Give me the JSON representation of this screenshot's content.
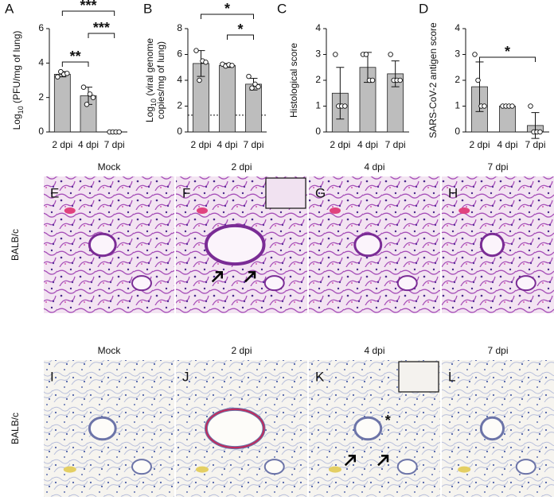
{
  "chart_data": [
    {
      "type": "bar",
      "panel": "A",
      "categories": [
        "2 dpi",
        "4 dpi",
        "7 dpi"
      ],
      "ylabel": [
        [
          {
            "text": "Log"
          },
          {
            "text": "10",
            "subscript": true
          },
          {
            "text": " (PFU/mg of lung)"
          }
        ]
      ],
      "values": [
        3.35,
        2.1,
        0
      ],
      "errors": [
        0.15,
        0.5,
        0
      ],
      "points": [
        [
          3.2,
          3.5,
          3.35,
          3.4
        ],
        [
          2.6,
          1.6,
          2.2,
          2.0
        ],
        [
          0,
          0,
          0,
          0
        ]
      ],
      "ylim": [
        0,
        6
      ],
      "yticks": [
        0,
        2,
        4,
        6
      ],
      "color": "#bdbdbd",
      "annotations": [
        {
          "text": "**",
          "between": [
            "2 dpi",
            "4 dpi"
          ]
        },
        {
          "text": "***",
          "between": [
            "2 dpi",
            "7 dpi"
          ]
        },
        {
          "text": "***",
          "between": [
            "4 dpi",
            "7 dpi"
          ]
        }
      ]
    },
    {
      "type": "bar",
      "panel": "B",
      "categories": [
        "2 dpi",
        "4 dpi",
        "7 dpi"
      ],
      "ylabel": [
        [
          {
            "text": "Log"
          },
          {
            "text": "10",
            "subscript": true
          },
          {
            "text": " (viral genome"
          }
        ],
        [
          {
            "text": "copies/mg of lung)"
          }
        ]
      ],
      "values": [
        5.3,
        5.15,
        3.7
      ],
      "errors": [
        1.0,
        0.15,
        0.45
      ],
      "points": [
        [
          6.3,
          4.0,
          5.5,
          5.4
        ],
        [
          5.25,
          5.1,
          5.2,
          5.15
        ],
        [
          4.3,
          3.4,
          3.7,
          3.5
        ]
      ],
      "ylim": [
        0,
        8
      ],
      "yticks": [
        0,
        2,
        4,
        6,
        8
      ],
      "color": "#bdbdbd",
      "reference_line": 1.3,
      "annotations": [
        {
          "text": "*",
          "between": [
            "2 dpi",
            "7 dpi"
          ]
        },
        {
          "text": "*",
          "between": [
            "4 dpi",
            "7 dpi"
          ]
        }
      ]
    },
    {
      "type": "bar",
      "panel": "C",
      "categories": [
        "2 dpi",
        "4 dpi",
        "7 dpi"
      ],
      "ylabel": [
        [
          {
            "text": "Histological score"
          }
        ]
      ],
      "values": [
        1.5,
        2.5,
        2.25
      ],
      "errors": [
        1.0,
        0.58,
        0.5
      ],
      "points": [
        [
          3,
          1,
          1,
          1
        ],
        [
          3,
          3,
          2,
          2
        ],
        [
          3,
          2,
          2,
          2
        ]
      ],
      "ylim": [
        0,
        4
      ],
      "yticks": [
        0,
        1,
        2,
        3,
        4
      ],
      "color": "#bdbdbd",
      "annotations": []
    },
    {
      "type": "bar",
      "panel": "D",
      "categories": [
        "2 dpi",
        "4 dpi",
        "7 dpi"
      ],
      "ylabel": [
        [
          {
            "text": "SARS-CoV-2 antigen score"
          }
        ]
      ],
      "values": [
        1.75,
        1.0,
        0.25
      ],
      "errors": [
        0.96,
        0,
        0.5
      ],
      "points": [
        [
          3,
          2,
          1,
          1
        ],
        [
          1,
          1,
          1,
          1
        ],
        [
          1,
          0,
          0,
          0
        ]
      ],
      "ylim": [
        0,
        4
      ],
      "yticks": [
        0,
        1,
        2,
        3,
        4
      ],
      "color": "#bdbdbd",
      "annotations": [
        {
          "text": "*",
          "between": [
            "2 dpi",
            "7 dpi"
          ]
        }
      ]
    }
  ],
  "micrographs": {
    "rows": [
      {
        "label": "BALB/c",
        "stain": "HE",
        "panels": [
          {
            "letter": "E",
            "title": "Mock"
          },
          {
            "letter": "F",
            "title": "2 dpi"
          },
          {
            "letter": "G",
            "title": "4 dpi"
          },
          {
            "letter": "H",
            "title": "7 dpi"
          }
        ]
      },
      {
        "label": "BALB/c",
        "stain": "IHC",
        "panels": [
          {
            "letter": "I",
            "title": "Mock"
          },
          {
            "letter": "J",
            "title": "2 dpi"
          },
          {
            "letter": "K",
            "title": "4 dpi",
            "mark": "*"
          },
          {
            "letter": "L",
            "title": "7 dpi"
          }
        ]
      }
    ]
  }
}
